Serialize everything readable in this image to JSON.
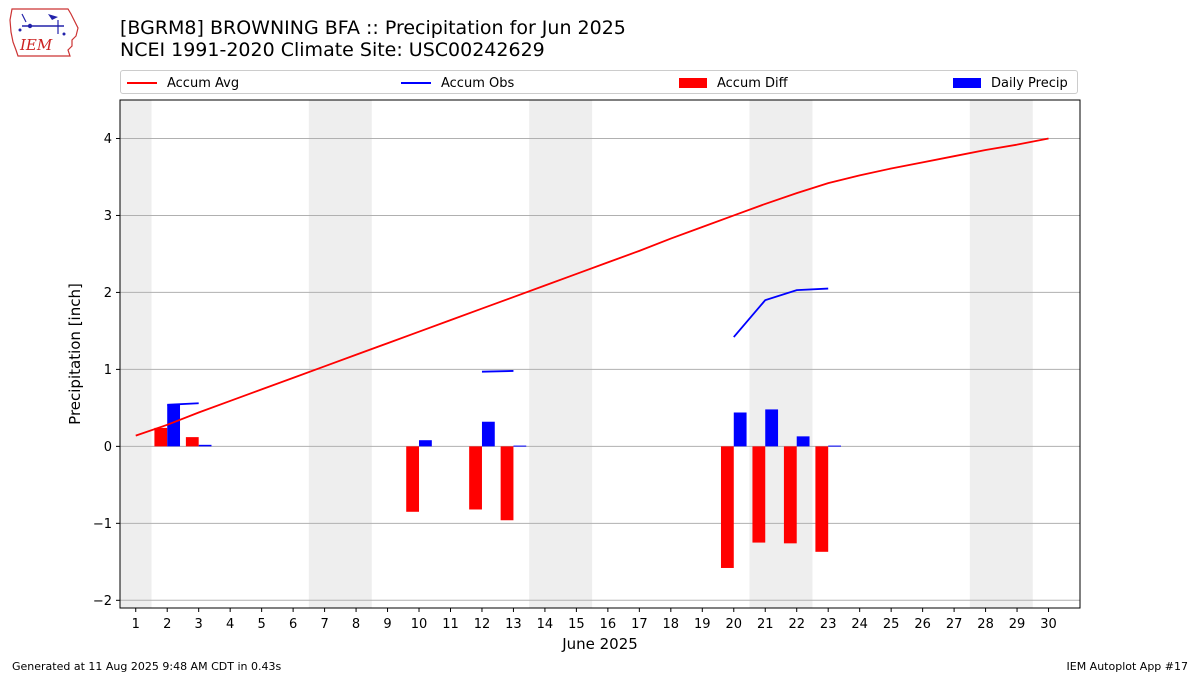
{
  "header": {
    "title_line1": "[BGRM8] BROWNING BFA :: Precipitation for Jun 2025",
    "title_line2": "NCEI 1991-2020 Climate Site: USC00242629"
  },
  "logo": {
    "text": "IEM",
    "icon": "iowa-state-map-icon"
  },
  "legend": [
    {
      "label": "Accum Avg",
      "kind": "line",
      "color": "#ff0000"
    },
    {
      "label": "Accum Obs",
      "kind": "line",
      "color": "#0000ff"
    },
    {
      "label": "Accum Diff",
      "kind": "bar",
      "color": "#ff0000"
    },
    {
      "label": "Daily Precip",
      "kind": "bar",
      "color": "#0000ff"
    }
  ],
  "chart_data": {
    "type": "bar",
    "xlabel": "June 2025",
    "ylabel": "Precipitation [inch]",
    "xlim": [
      0.5,
      31
    ],
    "ylim": [
      -2.1,
      4.5
    ],
    "yticks": [
      -2,
      -1,
      0,
      1,
      2,
      3,
      4
    ],
    "ytick_labels": [
      "−2",
      "−1",
      "0",
      "1",
      "2",
      "3",
      "4"
    ],
    "x": [
      1,
      2,
      3,
      4,
      5,
      6,
      7,
      8,
      9,
      10,
      11,
      12,
      13,
      14,
      15,
      16,
      17,
      18,
      19,
      20,
      21,
      22,
      23,
      24,
      25,
      26,
      27,
      28,
      29,
      30
    ],
    "grid": "horizontal",
    "weekend_shading": [
      [
        0.5,
        1.5
      ],
      [
        6.5,
        8.5
      ],
      [
        13.5,
        15.5
      ],
      [
        20.5,
        22.5
      ],
      [
        27.5,
        29.5
      ]
    ],
    "weekend_color": "#eeeeee",
    "series": [
      {
        "name": "Accum Avg",
        "type": "line",
        "color": "#ff0000",
        "x": [
          1,
          2,
          3,
          4,
          5,
          6,
          7,
          8,
          9,
          10,
          11,
          12,
          13,
          14,
          15,
          16,
          17,
          18,
          19,
          20,
          21,
          22,
          23,
          24,
          25,
          26,
          27,
          28,
          29,
          30
        ],
        "values": [
          0.14,
          0.28,
          0.44,
          0.59,
          0.74,
          0.89,
          1.04,
          1.19,
          1.34,
          1.49,
          1.64,
          1.79,
          1.94,
          2.09,
          2.24,
          2.39,
          2.54,
          2.7,
          2.85,
          3.0,
          3.15,
          3.29,
          3.42,
          3.52,
          3.61,
          3.69,
          3.77,
          3.85,
          3.92,
          4.0
        ]
      },
      {
        "name": "Accum Obs",
        "type": "line",
        "color": "#0000ff",
        "segments": [
          {
            "x": [
              2,
              3
            ],
            "values": [
              0.54,
              0.56
            ]
          },
          {
            "x": [
              12,
              13
            ],
            "values": [
              0.97,
              0.98
            ]
          },
          {
            "x": [
              20,
              21,
              22,
              23
            ],
            "values": [
              1.42,
              1.9,
              2.03,
              2.05
            ]
          }
        ]
      },
      {
        "name": "Accum Diff",
        "type": "bar",
        "color": "#ff0000",
        "x": [
          2,
          3,
          10,
          12,
          13,
          20,
          21,
          22,
          23
        ],
        "values": [
          0.24,
          0.12,
          -0.85,
          -0.82,
          -0.96,
          -1.58,
          -1.25,
          -1.26,
          -1.37
        ]
      },
      {
        "name": "Daily Precip",
        "type": "bar",
        "color": "#0000ff",
        "x": [
          2,
          3,
          10,
          12,
          13,
          20,
          21,
          22,
          23
        ],
        "values": [
          0.54,
          0.02,
          0.08,
          0.32,
          0.01,
          0.44,
          0.48,
          0.13,
          0.01
        ]
      }
    ]
  },
  "footer": {
    "left": "Generated at 11 Aug 2025 9:48 AM CDT in 0.43s",
    "right": "IEM Autoplot App #17"
  }
}
